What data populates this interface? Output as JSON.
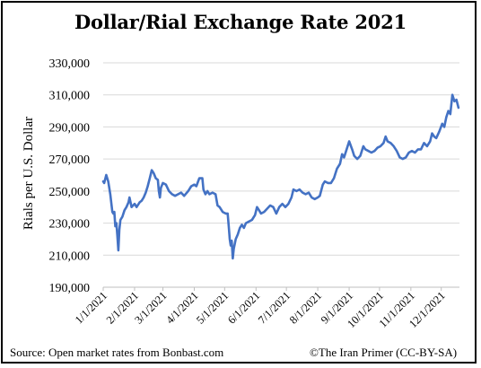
{
  "source_text": "Source: Open market rates from Bonbast.com",
  "credit_text": "©The Iran Primer (CC-BY-SA)",
  "chart_data": {
    "type": "line",
    "title": "Dollar/Rial Exchange Rate 2021",
    "ylabel": "Rials per U.S. Dollar",
    "xlabel": "",
    "ylim": [
      190000,
      330000
    ],
    "yticks": [
      190000,
      210000,
      230000,
      250000,
      270000,
      290000,
      310000,
      330000
    ],
    "ytick_labels": [
      "190,000",
      "210,000",
      "230,000",
      "250,000",
      "270,000",
      "290,000",
      "310,000",
      "330,000"
    ],
    "xlim": [
      "2021-01-01",
      "2021-12-19"
    ],
    "xticks": [
      "2021-01-01",
      "2021-02-01",
      "2021-03-01",
      "2021-04-01",
      "2021-05-01",
      "2021-06-01",
      "2021-07-01",
      "2021-08-01",
      "2021-09-01",
      "2021-10-01",
      "2021-11-01",
      "2021-12-01"
    ],
    "xtick_labels": [
      "1/1/2021",
      "2/1/2021",
      "3/1/2021",
      "4/1/2021",
      "5/1/2021",
      "6/1/2021",
      "7/1/2021",
      "8/1/2021",
      "9/1/2021",
      "10/1/2021",
      "11/1/2021",
      "12/1/2021"
    ],
    "grid": "horizontal",
    "line_color": "#4472c4",
    "series": [
      {
        "name": "",
        "points": [
          [
            "2021-01-01",
            256000
          ],
          [
            "2021-01-02",
            255000
          ],
          [
            "2021-01-04",
            260000
          ],
          [
            "2021-01-06",
            256000
          ],
          [
            "2021-01-08",
            248000
          ],
          [
            "2021-01-10",
            237000
          ],
          [
            "2021-01-11",
            236000
          ],
          [
            "2021-01-12",
            237000
          ],
          [
            "2021-01-13",
            228000
          ],
          [
            "2021-01-14",
            230000
          ],
          [
            "2021-01-15",
            222000
          ],
          [
            "2021-01-16",
            213000
          ],
          [
            "2021-01-17",
            226000
          ],
          [
            "2021-01-18",
            232000
          ],
          [
            "2021-01-20",
            234000
          ],
          [
            "2021-01-22",
            238000
          ],
          [
            "2021-01-24",
            240000
          ],
          [
            "2021-01-26",
            243000
          ],
          [
            "2021-01-27",
            246000
          ],
          [
            "2021-01-29",
            240000
          ],
          [
            "2021-02-01",
            242000
          ],
          [
            "2021-02-03",
            240000
          ],
          [
            "2021-02-06",
            243000
          ],
          [
            "2021-02-08",
            244000
          ],
          [
            "2021-02-10",
            246000
          ],
          [
            "2021-02-12",
            249000
          ],
          [
            "2021-02-14",
            253000
          ],
          [
            "2021-02-16",
            258000
          ],
          [
            "2021-02-18",
            263000
          ],
          [
            "2021-02-20",
            261000
          ],
          [
            "2021-02-22",
            258000
          ],
          [
            "2021-02-24",
            257000
          ],
          [
            "2021-02-25",
            250000
          ],
          [
            "2021-02-26",
            246000
          ],
          [
            "2021-02-27",
            252000
          ],
          [
            "2021-03-01",
            255000
          ],
          [
            "2021-03-04",
            254000
          ],
          [
            "2021-03-07",
            250000
          ],
          [
            "2021-03-10",
            248000
          ],
          [
            "2021-03-13",
            247000
          ],
          [
            "2021-03-16",
            248000
          ],
          [
            "2021-03-19",
            249000
          ],
          [
            "2021-03-22",
            247000
          ],
          [
            "2021-03-26",
            250000
          ],
          [
            "2021-03-29",
            253000
          ],
          [
            "2021-04-01",
            254000
          ],
          [
            "2021-04-03",
            253000
          ],
          [
            "2021-04-06",
            258000
          ],
          [
            "2021-04-09",
            258000
          ],
          [
            "2021-04-10",
            251000
          ],
          [
            "2021-04-12",
            248000
          ],
          [
            "2021-04-14",
            250000
          ],
          [
            "2021-04-16",
            248000
          ],
          [
            "2021-04-19",
            249000
          ],
          [
            "2021-04-22",
            248000
          ],
          [
            "2021-04-24",
            241000
          ],
          [
            "2021-04-26",
            240000
          ],
          [
            "2021-04-29",
            237000
          ],
          [
            "2021-05-02",
            236000
          ],
          [
            "2021-05-04",
            236000
          ],
          [
            "2021-05-05",
            228000
          ],
          [
            "2021-05-06",
            220000
          ],
          [
            "2021-05-07",
            216000
          ],
          [
            "2021-05-08",
            219000
          ],
          [
            "2021-05-09",
            208000
          ],
          [
            "2021-05-10",
            214000
          ],
          [
            "2021-05-12",
            220000
          ],
          [
            "2021-05-14",
            223000
          ],
          [
            "2021-05-16",
            227000
          ],
          [
            "2021-05-18",
            229000
          ],
          [
            "2021-05-20",
            227000
          ],
          [
            "2021-05-22",
            230000
          ],
          [
            "2021-05-25",
            231000
          ],
          [
            "2021-05-28",
            232000
          ],
          [
            "2021-05-31",
            235000
          ],
          [
            "2021-06-02",
            240000
          ],
          [
            "2021-06-04",
            238000
          ],
          [
            "2021-06-06",
            236000
          ],
          [
            "2021-06-09",
            237000
          ],
          [
            "2021-06-12",
            239000
          ],
          [
            "2021-06-15",
            241000
          ],
          [
            "2021-06-18",
            240000
          ],
          [
            "2021-06-21",
            236000
          ],
          [
            "2021-06-24",
            240000
          ],
          [
            "2021-06-27",
            242000
          ],
          [
            "2021-06-30",
            240000
          ],
          [
            "2021-07-03",
            242000
          ],
          [
            "2021-07-06",
            246000
          ],
          [
            "2021-07-08",
            251000
          ],
          [
            "2021-07-11",
            250000
          ],
          [
            "2021-07-14",
            251000
          ],
          [
            "2021-07-17",
            249000
          ],
          [
            "2021-07-20",
            248000
          ],
          [
            "2021-07-23",
            249000
          ],
          [
            "2021-07-26",
            246000
          ],
          [
            "2021-07-29",
            245000
          ],
          [
            "2021-08-01",
            246000
          ],
          [
            "2021-08-03",
            247000
          ],
          [
            "2021-08-06",
            254000
          ],
          [
            "2021-08-08",
            256000
          ],
          [
            "2021-08-11",
            255000
          ],
          [
            "2021-08-14",
            255000
          ],
          [
            "2021-08-17",
            258000
          ],
          [
            "2021-08-20",
            264000
          ],
          [
            "2021-08-23",
            267000
          ],
          [
            "2021-08-25",
            273000
          ],
          [
            "2021-08-27",
            271000
          ],
          [
            "2021-08-29",
            275000
          ],
          [
            "2021-09-01",
            281000
          ],
          [
            "2021-09-04",
            276000
          ],
          [
            "2021-09-06",
            272000
          ],
          [
            "2021-09-09",
            270000
          ],
          [
            "2021-09-12",
            272000
          ],
          [
            "2021-09-15",
            278000
          ],
          [
            "2021-09-17",
            276000
          ],
          [
            "2021-09-20",
            275000
          ],
          [
            "2021-09-23",
            274000
          ],
          [
            "2021-09-26",
            275000
          ],
          [
            "2021-09-29",
            277000
          ],
          [
            "2021-10-02",
            278000
          ],
          [
            "2021-10-05",
            280000
          ],
          [
            "2021-10-07",
            284000
          ],
          [
            "2021-10-09",
            281000
          ],
          [
            "2021-10-12",
            280000
          ],
          [
            "2021-10-15",
            278000
          ],
          [
            "2021-10-18",
            275000
          ],
          [
            "2021-10-21",
            271000
          ],
          [
            "2021-10-24",
            270000
          ],
          [
            "2021-10-27",
            271000
          ],
          [
            "2021-10-30",
            274000
          ],
          [
            "2021-11-02",
            275000
          ],
          [
            "2021-11-05",
            274000
          ],
          [
            "2021-11-08",
            276000
          ],
          [
            "2021-11-11",
            276000
          ],
          [
            "2021-11-14",
            280000
          ],
          [
            "2021-11-17",
            278000
          ],
          [
            "2021-11-20",
            281000
          ],
          [
            "2021-11-22",
            286000
          ],
          [
            "2021-11-24",
            284000
          ],
          [
            "2021-11-26",
            283000
          ],
          [
            "2021-11-29",
            287000
          ],
          [
            "2021-12-02",
            292000
          ],
          [
            "2021-12-04",
            290000
          ],
          [
            "2021-12-06",
            296000
          ],
          [
            "2021-12-08",
            300000
          ],
          [
            "2021-12-10",
            298000
          ],
          [
            "2021-12-12",
            310000
          ],
          [
            "2021-12-14",
            306000
          ],
          [
            "2021-12-16",
            307000
          ],
          [
            "2021-12-18",
            302000
          ]
        ]
      }
    ]
  }
}
